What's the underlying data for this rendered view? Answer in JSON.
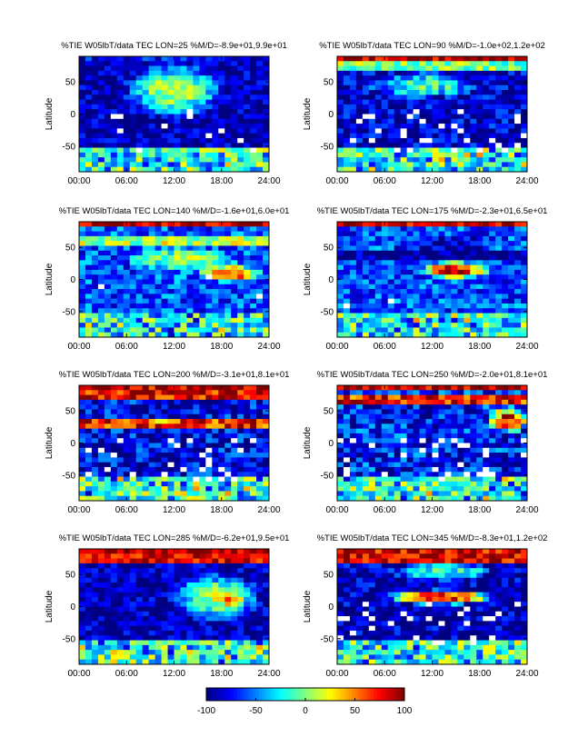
{
  "chart_data": [
    {
      "type": "heatmap",
      "title": "%TIE W05lbT/data TEC  LON=25 %M/D=-8.9e+01,9.9e+01",
      "ylabel": "Latitude",
      "x_ticks": [
        "00:00",
        "06:00",
        "12:00",
        "18:00",
        "24:00"
      ],
      "y_ticks": [
        "50",
        "0",
        "-50"
      ],
      "xlim": [
        0,
        24
      ],
      "ylim": [
        -90,
        90
      ],
      "vmin": -100,
      "vmax": 100
    },
    {
      "type": "heatmap",
      "title": "%TIE W05lbT/data TEC  LON=90 %M/D=-1.0e+02,1.2e+02",
      "ylabel": "Latitude",
      "x_ticks": [
        "00:00",
        "06:00",
        "12:00",
        "18:00",
        "24:00"
      ],
      "y_ticks": [
        "50",
        "0",
        "-50"
      ],
      "xlim": [
        0,
        24
      ],
      "ylim": [
        -90,
        90
      ],
      "vmin": -100,
      "vmax": 100
    },
    {
      "type": "heatmap",
      "title": "%TIE W05lbT/data TEC  LON=140 %M/D=-1.6e+01,6.0e+01",
      "ylabel": "Latitude",
      "x_ticks": [
        "00:00",
        "06:00",
        "12:00",
        "18:00",
        "24:00"
      ],
      "y_ticks": [
        "50",
        "0",
        "-50"
      ],
      "xlim": [
        0,
        24
      ],
      "ylim": [
        -90,
        90
      ],
      "vmin": -100,
      "vmax": 100
    },
    {
      "type": "heatmap",
      "title": "%TIE W05lbT/data TEC  LON=175 %M/D=-2.3e+01,6.5e+01",
      "ylabel": "Latitude",
      "x_ticks": [
        "00:00",
        "06:00",
        "12:00",
        "18:00",
        "24:00"
      ],
      "y_ticks": [
        "50",
        "0",
        "-50"
      ],
      "xlim": [
        0,
        24
      ],
      "ylim": [
        -90,
        90
      ],
      "vmin": -100,
      "vmax": 100
    },
    {
      "type": "heatmap",
      "title": "%TIE W05lbT/data TEC  LON=200 %M/D=-3.1e+01,8.1e+01",
      "ylabel": "Latitude",
      "x_ticks": [
        "00:00",
        "06:00",
        "12:00",
        "18:00",
        "24:00"
      ],
      "y_ticks": [
        "50",
        "0",
        "-50"
      ],
      "xlim": [
        0,
        24
      ],
      "ylim": [
        -90,
        90
      ],
      "vmin": -100,
      "vmax": 100
    },
    {
      "type": "heatmap",
      "title": "%TIE W05lbT/data TEC  LON=250 %M/D=-2.0e+01,8.1e+01",
      "ylabel": "Latitude",
      "x_ticks": [
        "00:00",
        "06:00",
        "12:00",
        "18:00",
        "24:00"
      ],
      "y_ticks": [
        "50",
        "0",
        "-50"
      ],
      "xlim": [
        0,
        24
      ],
      "ylim": [
        -90,
        90
      ],
      "vmin": -100,
      "vmax": 100
    },
    {
      "type": "heatmap",
      "title": "%TIE W05lbT/data TEC  LON=285 %M/D=-6.2e+01,9.5e+01",
      "ylabel": "Latitude",
      "x_ticks": [
        "00:00",
        "06:00",
        "12:00",
        "18:00",
        "24:00"
      ],
      "y_ticks": [
        "50",
        "0",
        "-50"
      ],
      "xlim": [
        0,
        24
      ],
      "ylim": [
        -90,
        90
      ],
      "vmin": -100,
      "vmax": 100
    },
    {
      "type": "heatmap",
      "title": "%TIE W05lbT/data TEC  LON=345 %M/D=-8.3e+01,1.2e+02",
      "ylabel": "Latitude",
      "x_ticks": [
        "00:00",
        "06:00",
        "12:00",
        "18:00",
        "24:00"
      ],
      "y_ticks": [
        "50",
        "0",
        "-50"
      ],
      "xlim": [
        0,
        24
      ],
      "ylim": [
        -90,
        90
      ],
      "vmin": -100,
      "vmax": 100
    }
  ],
  "colorbar": {
    "ticks": [
      "-100",
      "-50",
      "0",
      "50",
      "100"
    ],
    "range": [
      -100,
      100
    ],
    "colormap": "jet"
  }
}
